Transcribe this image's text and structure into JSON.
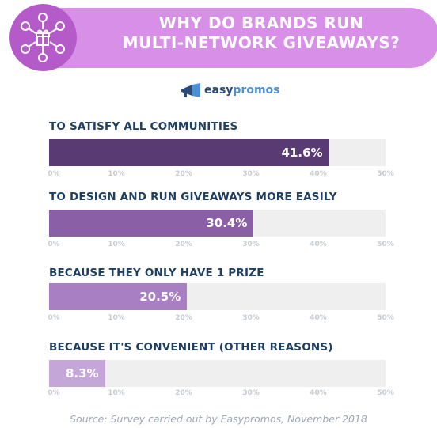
{
  "header": {
    "title_line1": "WHY DO BRANDS RUN",
    "title_line2": "MULTI-NETWORK GIVEAWAYS?",
    "icon": "gift-network-icon"
  },
  "logo": {
    "text_part1": "easy",
    "text_part2": "promos",
    "icon": "megaphone-icon"
  },
  "colors": {
    "banner": "#d88fe8",
    "icon_circle": "#b45bc9",
    "question_text": "#1f3f62",
    "track": "#efefef",
    "bars": [
      "#5a3a72",
      "#8a5fa6",
      "#a97fc4",
      "#c5a6d9"
    ]
  },
  "chart_data": {
    "type": "bar",
    "orientation": "horizontal",
    "categories": [
      "TO SATISFY ALL COMMUNITIES",
      "TO DESIGN AND RUN GIVEAWAYS MORE EASILY",
      "BECAUSE THEY ONLY HAVE 1 PRIZE",
      "BECAUSE IT'S CONVENIENT (OTHER REASONS)"
    ],
    "values": [
      41.6,
      30.4,
      20.5,
      8.3
    ],
    "value_labels": [
      "41.6%",
      "30.4%",
      "20.5%",
      "8.3%"
    ],
    "xlim": [
      0,
      50
    ],
    "x_ticks": [
      "0%",
      "10%",
      "20%",
      "30%",
      "40%",
      "50%"
    ],
    "title": "WHY DO BRANDS RUN MULTI-NETWORK GIVEAWAYS?",
    "grid": false
  },
  "source": "Source: Survey carried out by Easypromos, November 2018"
}
